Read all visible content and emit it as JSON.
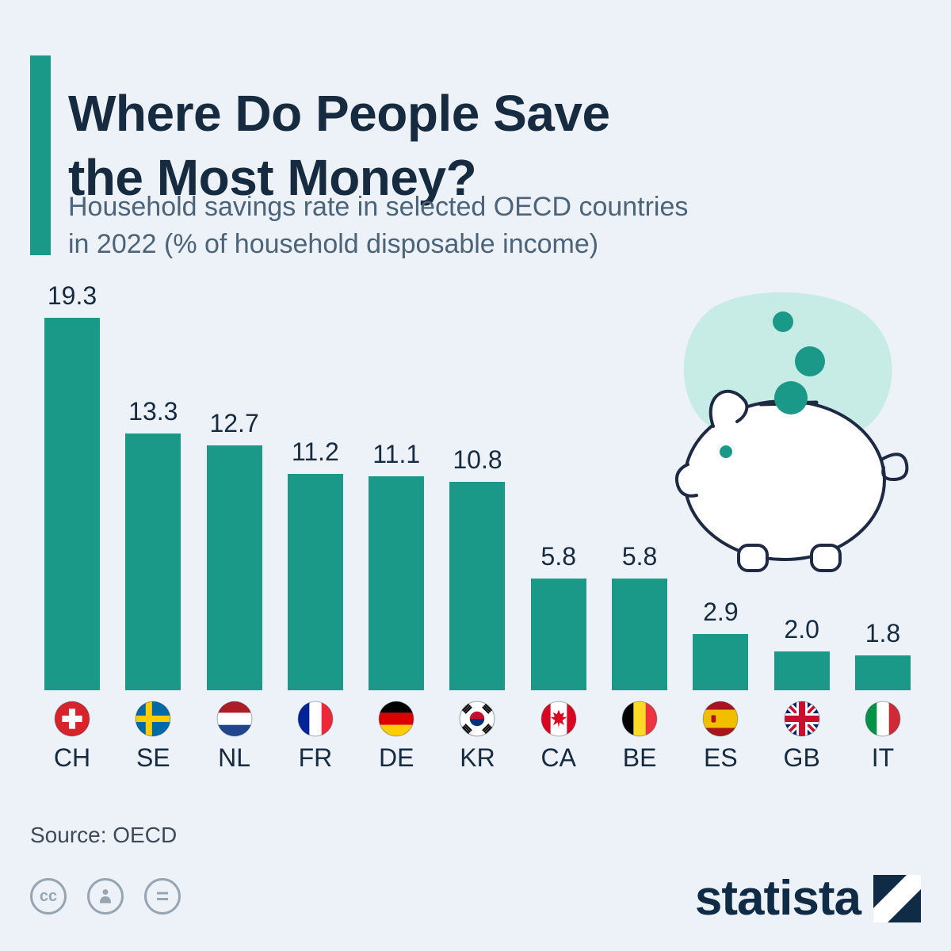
{
  "page": {
    "title": "Where Do People Save\nthe Most Money?",
    "subtitle": "Household savings rate in selected OECD countries\nin 2022 (% of household disposable income)",
    "source": "Source: OECD",
    "brand": "statista"
  },
  "colors": {
    "accent_teal": "#1A9988",
    "background": "#EDF2F8",
    "title_navy": "#162B40",
    "subtitle_slate": "#4C6378",
    "blob_teal": "#C7EBE5",
    "pig_outline_navy": "#1E2A44"
  },
  "chart_data": {
    "type": "bar",
    "title": "Where Do People Save the Most Money?",
    "subtitle": "Household savings rate in selected OECD countries in 2022 (% of household disposable income)",
    "categories": [
      "CH",
      "SE",
      "NL",
      "FR",
      "DE",
      "KR",
      "CA",
      "BE",
      "ES",
      "GB",
      "IT"
    ],
    "values": [
      19.3,
      13.3,
      12.7,
      11.2,
      11.1,
      10.8,
      5.8,
      5.8,
      2.9,
      2.0,
      1.8
    ],
    "value_labels": [
      "19.3",
      "13.3",
      "12.7",
      "11.2",
      "11.1",
      "10.8",
      "5.8",
      "5.8",
      "2.9",
      "2.0",
      "1.8"
    ],
    "flags": [
      "ch",
      "se",
      "nl",
      "fr",
      "de",
      "kr",
      "ca",
      "be",
      "es",
      "gb",
      "it"
    ],
    "country_names": [
      "Switzerland",
      "Sweden",
      "Netherlands",
      "France",
      "Germany",
      "South Korea",
      "Canada",
      "Belgium",
      "Spain",
      "United Kingdom",
      "Italy"
    ],
    "xlabel": "",
    "ylabel": "% of household disposable income",
    "ylim": [
      0,
      20
    ],
    "grid": false,
    "legend": false,
    "bar_color": "#1A9988"
  },
  "illustration": "piggy-bank-with-coins",
  "footer": {
    "license_icons": [
      "cc-icon",
      "attribution-icon",
      "equals-icon"
    ]
  }
}
